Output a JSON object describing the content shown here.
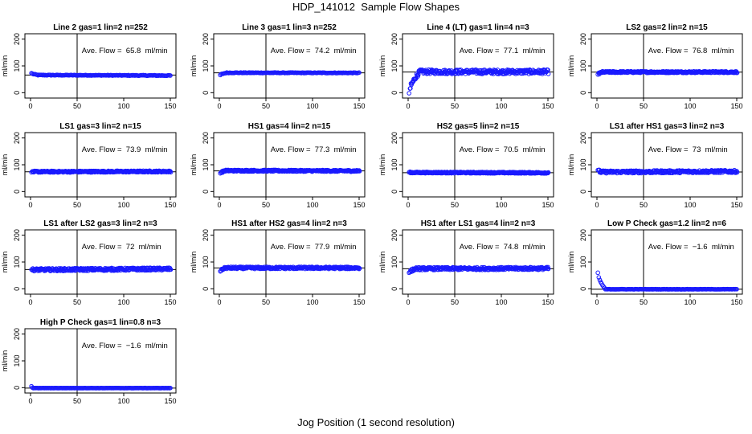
{
  "figure": {
    "title": "HDP_141012  Sample Flow Shapes",
    "x_axis_title": "Jog Position (1 second resolution)"
  },
  "colors": {
    "points": "#1a1aff",
    "axes": "#000000"
  },
  "chart_data": [
    {
      "type": "scatter",
      "title": "Line 2 gas=1 lin=2 n=252",
      "ylabel": "ml/min",
      "xlim": [
        0,
        150
      ],
      "ylim": [
        -20,
        220
      ],
      "x_ticks": [
        0,
        50,
        100,
        150
      ],
      "y_ticks": [
        0,
        100,
        200
      ],
      "vline_x": 50,
      "hline_y": 65.8,
      "annotation": "Ave. Flow =  65.8  ml/min",
      "shape": {
        "start": [
          1,
          73
        ],
        "settle_y": 65.8,
        "settle_x": 8,
        "end_y": 64,
        "noise": 1.2
      }
    },
    {
      "type": "scatter",
      "title": "Line 3 gas=1 lin=3 n=252",
      "ylabel": "ml/min",
      "xlim": [
        0,
        150
      ],
      "ylim": [
        -20,
        220
      ],
      "x_ticks": [
        0,
        50,
        100,
        150
      ],
      "y_ticks": [
        0,
        100,
        200
      ],
      "vline_x": 50,
      "hline_y": 74.2,
      "annotation": "Ave. Flow =  74.2  ml/min",
      "shape": {
        "start": [
          1,
          66
        ],
        "settle_y": 74.5,
        "settle_x": 8,
        "end_y": 74,
        "noise": 1.2
      }
    },
    {
      "type": "scatter",
      "title": "Line 4 (LT) gas=1 lin=4 n=3",
      "ylabel": "ml/min",
      "xlim": [
        0,
        150
      ],
      "ylim": [
        -20,
        220
      ],
      "x_ticks": [
        0,
        50,
        100,
        150
      ],
      "y_ticks": [
        0,
        100,
        200
      ],
      "vline_x": 50,
      "hline_y": 77.1,
      "annotation": "Ave. Flow =  77.1  ml/min",
      "shape": {
        "start": [
          1,
          -2
        ],
        "settle_y": 78,
        "settle_x": 12,
        "end_y": 78,
        "noise": 8
      }
    },
    {
      "type": "scatter",
      "title": "LS2 gas=2 lin=2 n=15",
      "ylabel": "ml/min",
      "xlim": [
        0,
        150
      ],
      "ylim": [
        -20,
        220
      ],
      "x_ticks": [
        0,
        50,
        100,
        150
      ],
      "y_ticks": [
        0,
        100,
        200
      ],
      "vline_x": 50,
      "hline_y": 76.8,
      "annotation": "Ave. Flow =  76.8  ml/min",
      "shape": {
        "start": [
          1,
          68
        ],
        "settle_y": 77,
        "settle_x": 6,
        "end_y": 77,
        "noise": 3
      }
    },
    {
      "type": "scatter",
      "title": "LS1 gas=3 lin=2 n=15",
      "ylabel": "ml/min",
      "xlim": [
        0,
        150
      ],
      "ylim": [
        -20,
        220
      ],
      "x_ticks": [
        0,
        50,
        100,
        150
      ],
      "y_ticks": [
        0,
        100,
        200
      ],
      "vline_x": 50,
      "hline_y": 73.9,
      "annotation": "Ave. Flow =  73.9  ml/min",
      "shape": {
        "start": [
          1,
          72
        ],
        "settle_y": 74,
        "settle_x": 4,
        "end_y": 75,
        "noise": 3
      }
    },
    {
      "type": "scatter",
      "title": "HS1 gas=4 lin=2 n=15",
      "ylabel": "ml/min",
      "xlim": [
        0,
        150
      ],
      "ylim": [
        -20,
        220
      ],
      "x_ticks": [
        0,
        50,
        100,
        150
      ],
      "y_ticks": [
        0,
        100,
        200
      ],
      "vline_x": 50,
      "hline_y": 77.3,
      "annotation": "Ave. Flow =  77.3  ml/min",
      "shape": {
        "start": [
          1,
          68
        ],
        "settle_y": 78,
        "settle_x": 6,
        "end_y": 77,
        "noise": 3
      }
    },
    {
      "type": "scatter",
      "title": "HS2 gas=5 lin=2 n=15",
      "ylabel": "ml/min",
      "xlim": [
        0,
        150
      ],
      "ylim": [
        -20,
        220
      ],
      "x_ticks": [
        0,
        50,
        100,
        150
      ],
      "y_ticks": [
        0,
        100,
        200
      ],
      "vline_x": 50,
      "hline_y": 70.5,
      "annotation": "Ave. Flow =  70.5  ml/min",
      "shape": {
        "start": [
          1,
          72
        ],
        "settle_y": 71,
        "settle_x": 4,
        "end_y": 70,
        "noise": 2.5
      }
    },
    {
      "type": "scatter",
      "title": "LS1 after HS1 gas=3 lin=2 n=3",
      "ylabel": "ml/min",
      "xlim": [
        0,
        150
      ],
      "ylim": [
        -20,
        220
      ],
      "x_ticks": [
        0,
        50,
        100,
        150
      ],
      "y_ticks": [
        0,
        100,
        200
      ],
      "vline_x": 50,
      "hline_y": 73,
      "annotation": "Ave. Flow =  73  ml/min",
      "shape": {
        "start": [
          1,
          80
        ],
        "settle_y": 73,
        "settle_x": 4,
        "end_y": 75,
        "noise": 5
      }
    },
    {
      "type": "scatter",
      "title": "LS1 after LS2 gas=3 lin=2 n=3",
      "ylabel": "ml/min",
      "xlim": [
        0,
        150
      ],
      "ylim": [
        -20,
        220
      ],
      "x_ticks": [
        0,
        50,
        100,
        150
      ],
      "y_ticks": [
        0,
        100,
        200
      ],
      "vline_x": 50,
      "hline_y": 72,
      "annotation": "Ave. Flow =  72  ml/min",
      "shape": {
        "start": [
          1,
          72
        ],
        "settle_y": 71,
        "settle_x": 4,
        "end_y": 74,
        "noise": 5
      }
    },
    {
      "type": "scatter",
      "title": "HS1 after HS2 gas=4 lin=2 n=3",
      "ylabel": "ml/min",
      "xlim": [
        0,
        150
      ],
      "ylim": [
        -20,
        220
      ],
      "x_ticks": [
        0,
        50,
        100,
        150
      ],
      "y_ticks": [
        0,
        100,
        200
      ],
      "vline_x": 50,
      "hline_y": 77.9,
      "annotation": "Ave. Flow =  77.9  ml/min",
      "shape": {
        "start": [
          1,
          65
        ],
        "settle_y": 78,
        "settle_x": 6,
        "end_y": 78,
        "noise": 4
      }
    },
    {
      "type": "scatter",
      "title": "HS1 after LS1 gas=4 lin=2 n=3",
      "ylabel": "ml/min",
      "xlim": [
        0,
        150
      ],
      "ylim": [
        -20,
        220
      ],
      "x_ticks": [
        0,
        50,
        100,
        150
      ],
      "y_ticks": [
        0,
        100,
        200
      ],
      "vline_x": 50,
      "hline_y": 74.8,
      "annotation": "Ave. Flow =  74.8  ml/min",
      "shape": {
        "start": [
          1,
          60
        ],
        "settle_y": 75,
        "settle_x": 8,
        "end_y": 76,
        "noise": 5
      }
    },
    {
      "type": "scatter",
      "title": "Low P Check gas=1.2 lin=2 n=6",
      "ylabel": "ml/min",
      "xlim": [
        0,
        150
      ],
      "ylim": [
        -20,
        220
      ],
      "x_ticks": [
        0,
        50,
        100,
        150
      ],
      "y_ticks": [
        0,
        100,
        200
      ],
      "vline_x": 50,
      "hline_y": -1.6,
      "annotation": "Ave. Flow =  −1.6  ml/min",
      "shape": {
        "start": [
          1,
          60
        ],
        "settle_y": -1.6,
        "settle_x": 9,
        "end_y": -1.6,
        "noise": 0.5
      }
    },
    {
      "type": "scatter",
      "title": "High P Check gas=1 lin=0.8 n=3",
      "ylabel": "ml/min",
      "xlim": [
        0,
        150
      ],
      "ylim": [
        -20,
        220
      ],
      "x_ticks": [
        0,
        50,
        100,
        150
      ],
      "y_ticks": [
        0,
        100,
        200
      ],
      "vline_x": 50,
      "hline_y": -1.6,
      "annotation": "Ave. Flow =  −1.6  ml/min",
      "shape": {
        "start": [
          1,
          5
        ],
        "settle_y": -1.6,
        "settle_x": 3,
        "end_y": -1.6,
        "noise": 0.4
      }
    }
  ]
}
